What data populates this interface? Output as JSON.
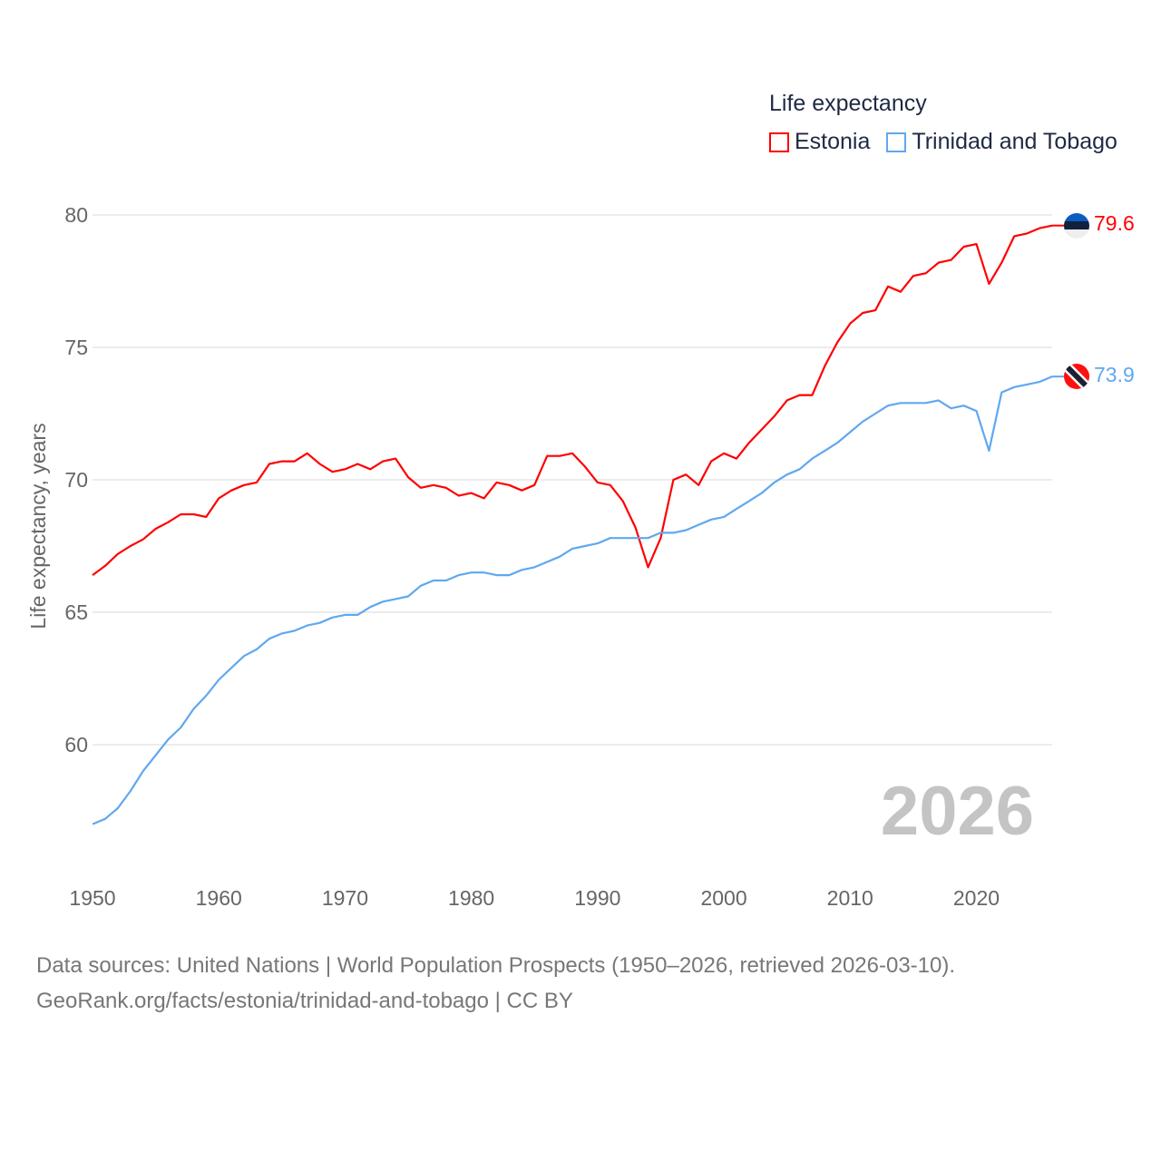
{
  "chart_data": {
    "type": "line",
    "legend_title": "Life expectancy",
    "legend_position": "top-right",
    "ylabel": "Life expectancy, years",
    "xlabel": "",
    "ylim": [
      57,
      80
    ],
    "xlim": [
      1950,
      2026
    ],
    "yticks": [
      60,
      65,
      70,
      75,
      80
    ],
    "xticks": [
      1950,
      1960,
      1970,
      1980,
      1990,
      2000,
      2010,
      2020
    ],
    "grid": true,
    "year_watermark": "2026",
    "x": [
      1950,
      1951,
      1952,
      1953,
      1954,
      1955,
      1956,
      1957,
      1958,
      1959,
      1960,
      1961,
      1962,
      1963,
      1964,
      1965,
      1966,
      1967,
      1968,
      1969,
      1970,
      1971,
      1972,
      1973,
      1974,
      1975,
      1976,
      1977,
      1978,
      1979,
      1980,
      1981,
      1982,
      1983,
      1984,
      1985,
      1986,
      1987,
      1988,
      1989,
      1990,
      1991,
      1992,
      1993,
      1994,
      1995,
      1996,
      1997,
      1998,
      1999,
      2000,
      2001,
      2002,
      2003,
      2004,
      2005,
      2006,
      2007,
      2008,
      2009,
      2010,
      2011,
      2012,
      2013,
      2014,
      2015,
      2016,
      2017,
      2018,
      2019,
      2020,
      2021,
      2022,
      2023,
      2024,
      2025,
      2026
    ],
    "series": [
      {
        "name": "Estonia",
        "color": "#ff0000",
        "end_label": "79.6",
        "values": [
          66.4,
          66.75,
          67.2,
          67.5,
          67.75,
          68.15,
          68.4,
          68.7,
          68.7,
          68.6,
          69.3,
          69.6,
          69.8,
          69.9,
          70.6,
          70.7,
          70.7,
          71.0,
          70.6,
          70.3,
          70.4,
          70.6,
          70.4,
          70.7,
          70.8,
          70.1,
          69.7,
          69.8,
          69.7,
          69.4,
          69.5,
          69.3,
          69.9,
          69.8,
          69.6,
          69.8,
          70.9,
          70.9,
          71.0,
          70.5,
          69.9,
          69.8,
          69.2,
          68.2,
          66.7,
          67.8,
          70.0,
          70.2,
          69.8,
          70.7,
          71.0,
          70.8,
          71.4,
          71.9,
          72.4,
          73.0,
          73.2,
          73.2,
          74.3,
          75.2,
          75.9,
          76.3,
          76.4,
          77.3,
          77.1,
          77.7,
          77.8,
          78.2,
          78.3,
          78.8,
          78.9,
          77.4,
          78.2,
          79.2,
          79.3,
          79.5,
          79.6
        ]
      },
      {
        "name": "Trinidad and Tobago",
        "color": "#5fa8f0",
        "end_label": "73.9",
        "values": [
          57.0,
          57.2,
          57.6,
          58.25,
          59.0,
          59.6,
          60.2,
          60.65,
          61.35,
          61.85,
          62.45,
          62.9,
          63.35,
          63.6,
          64.0,
          64.2,
          64.3,
          64.5,
          64.6,
          64.8,
          64.9,
          64.9,
          65.2,
          65.4,
          65.5,
          65.6,
          66.0,
          66.2,
          66.2,
          66.4,
          66.5,
          66.5,
          66.4,
          66.4,
          66.6,
          66.7,
          66.9,
          67.1,
          67.4,
          67.5,
          67.6,
          67.8,
          67.8,
          67.8,
          67.8,
          68.0,
          68.0,
          68.1,
          68.3,
          68.5,
          68.6,
          68.9,
          69.2,
          69.5,
          69.9,
          70.2,
          70.4,
          70.8,
          71.1,
          71.4,
          71.8,
          72.2,
          72.5,
          72.8,
          72.9,
          72.9,
          72.9,
          73.0,
          72.7,
          72.8,
          72.6,
          71.1,
          73.3,
          73.5,
          73.6,
          73.7,
          73.9
        ]
      }
    ]
  },
  "footer": {
    "source_line": "Data sources: United Nations | World Population Prospects (1950–2026, retrieved 2026-03-10).",
    "url_line": "GeoRank.org/facts/estonia/trinidad-and-tobago | CC BY"
  }
}
